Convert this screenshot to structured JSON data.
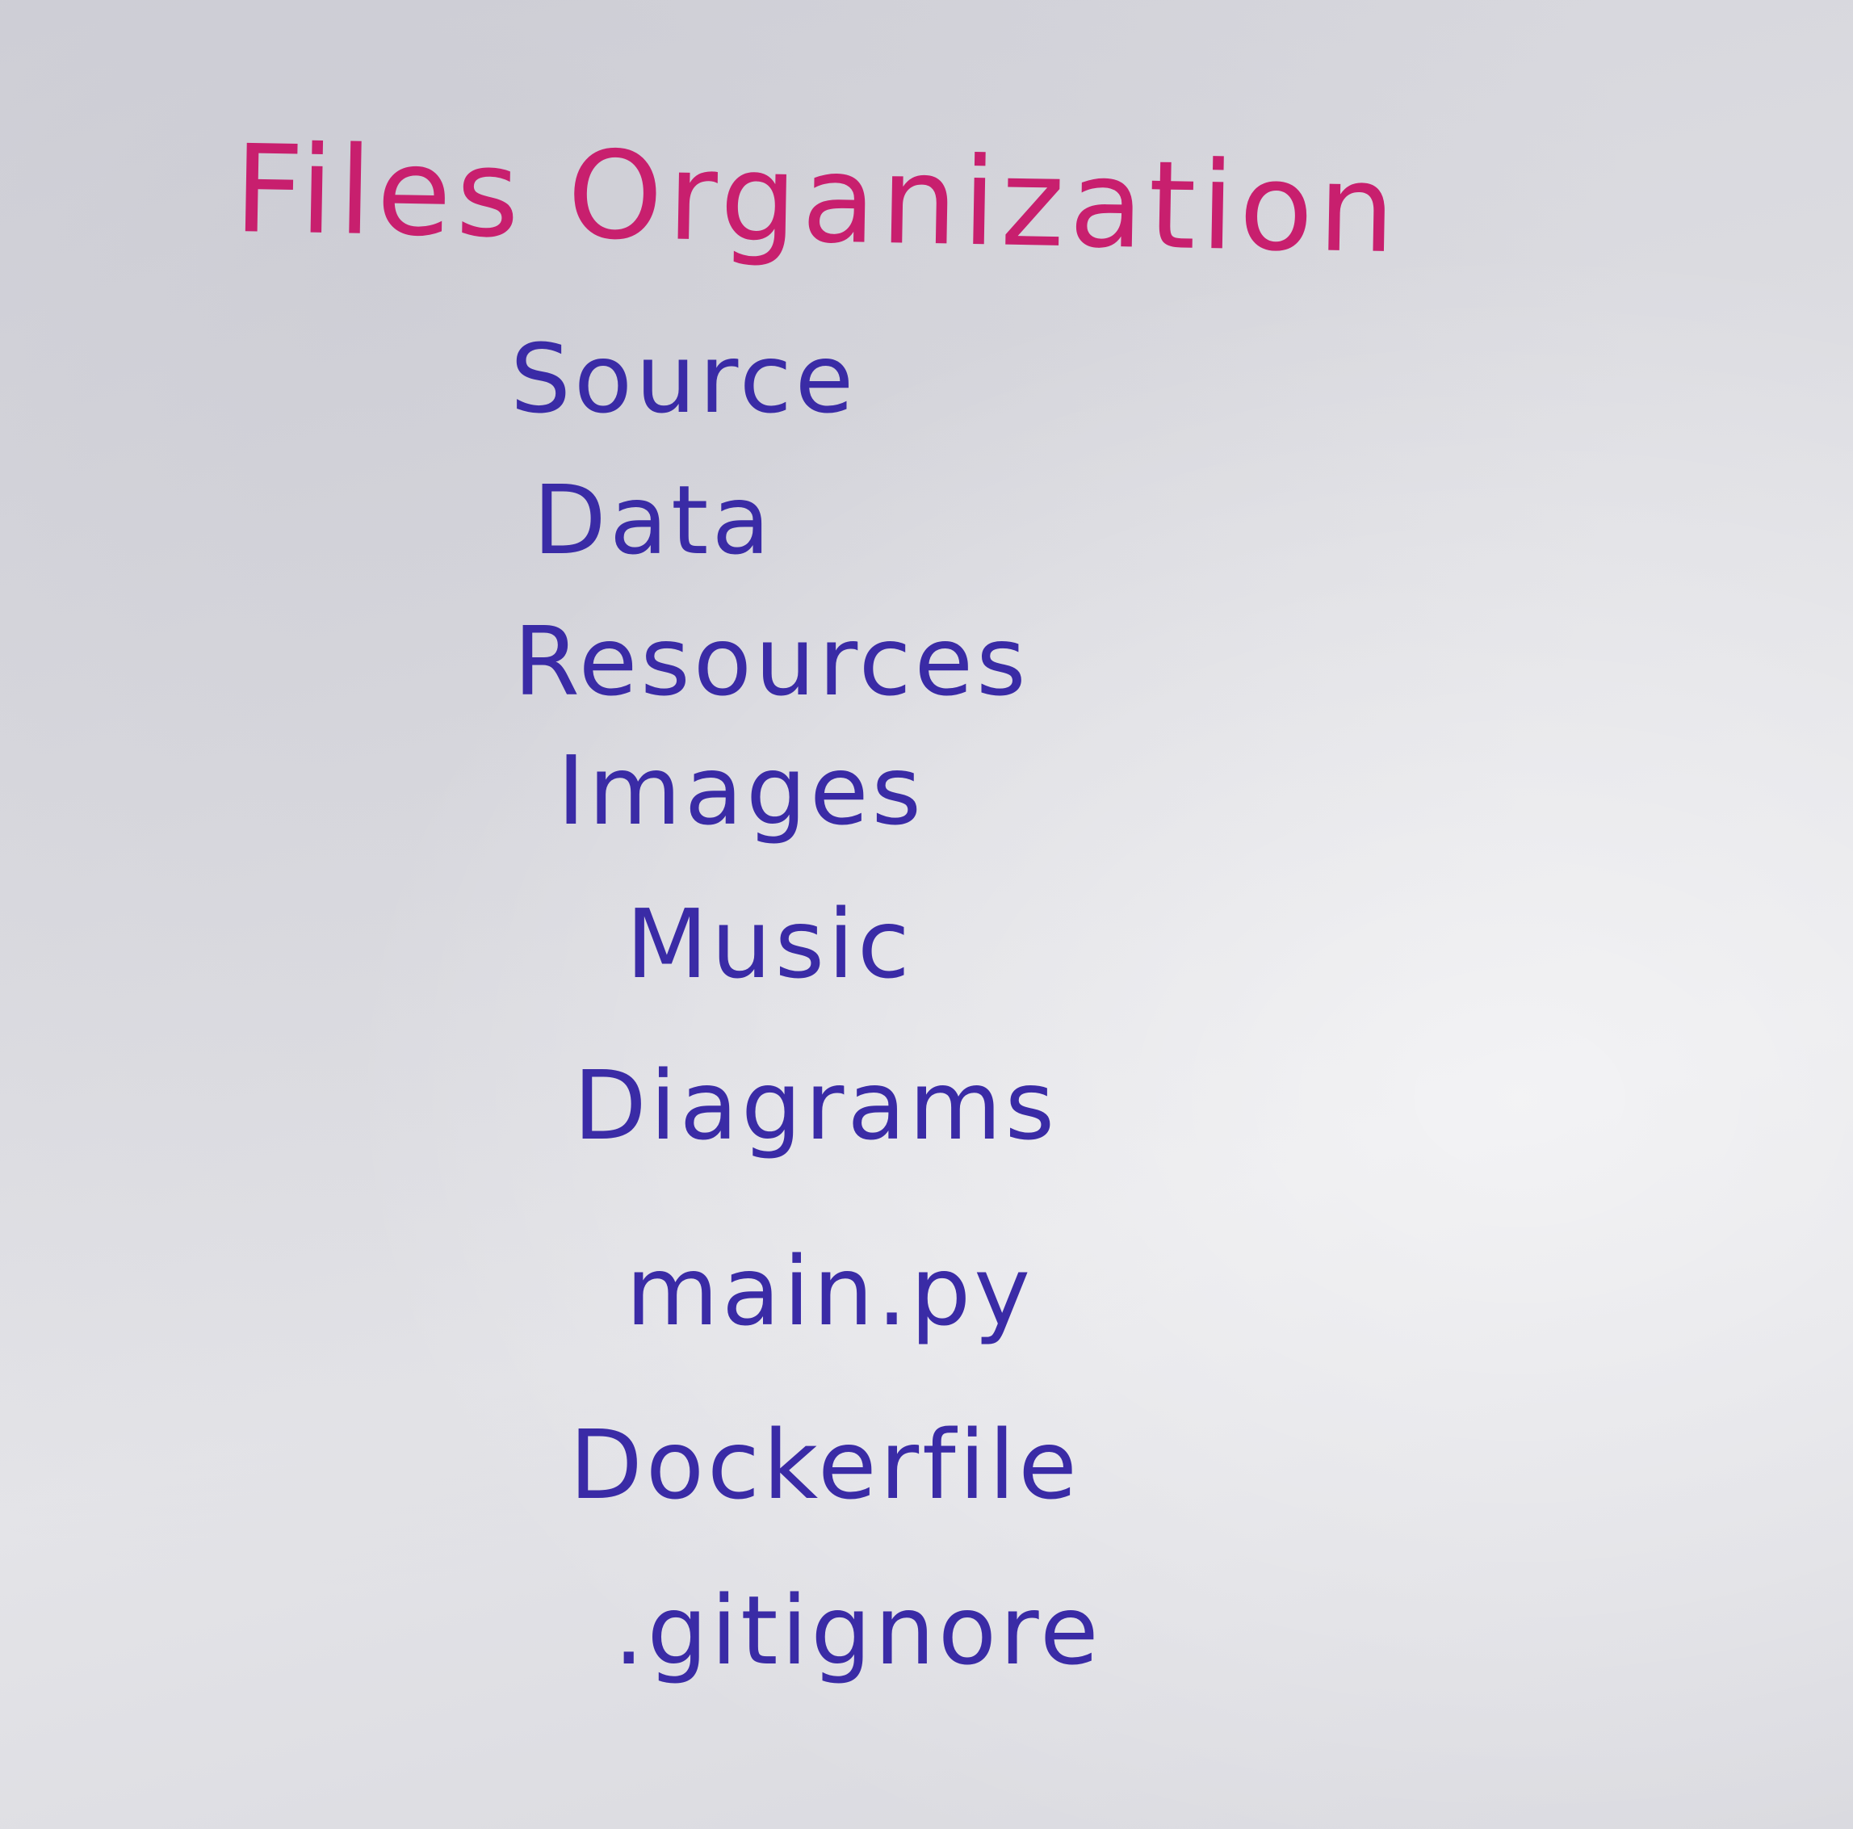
{
  "note": {
    "title": "Files Organization",
    "items": [
      "Source",
      "Data",
      "Resources",
      "Images",
      "Music",
      "Diagrams",
      "main.py",
      "Dockerfile",
      ".gitignore"
    ],
    "title_color": "#c81f6e",
    "ink_color": "#3a2ba6"
  }
}
